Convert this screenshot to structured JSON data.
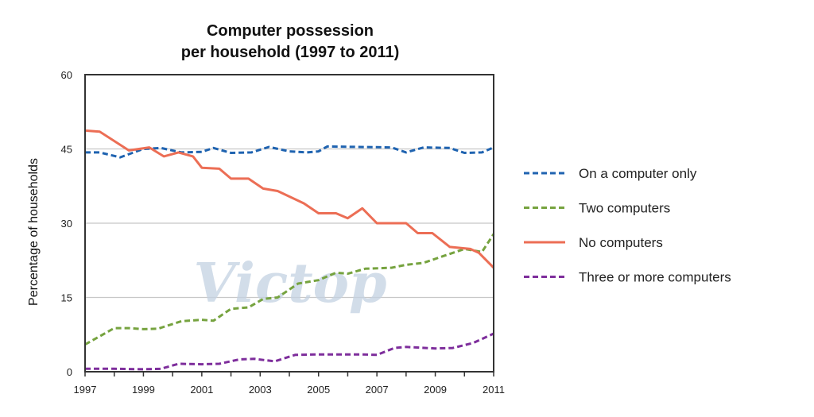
{
  "chart_data": {
    "type": "line",
    "title_line1": "Computer possession",
    "title_line2": "per household (1997 to 2011)",
    "xlabel": "",
    "ylabel": "Percentage of households",
    "xlim": [
      1997,
      2011
    ],
    "ylim": [
      0,
      60
    ],
    "xticks": [
      1997,
      1998,
      1999,
      2000,
      2001,
      2002,
      2003,
      2004,
      2005,
      2006,
      2007,
      2008,
      2009,
      2010,
      2011
    ],
    "xtick_labels": [
      "1997",
      "1999",
      "2001",
      "2003",
      "2005",
      "2007",
      "2009",
      "2011"
    ],
    "ytick_labels": [
      "0",
      "15",
      "30",
      "45",
      "60"
    ],
    "grid": "horizontal",
    "legend_position": "right",
    "watermark": "Victop",
    "series": [
      {
        "name": "On a computer only",
        "color": "#1f63b0",
        "dash": "dashed",
        "x": [
          1997,
          1997.5,
          1998.2,
          1999,
          1999.6,
          2000.3,
          2001,
          2001.4,
          2002,
          2002.7,
          2003.3,
          2004,
          2004.6,
          2005,
          2005.3,
          2007.5,
          2008,
          2008.6,
          2009.5,
          2010,
          2010.6,
          2011
        ],
        "y": [
          44.3,
          44.3,
          43.3,
          45,
          45.2,
          44.3,
          44.4,
          45.2,
          44.2,
          44.3,
          45.4,
          44.5,
          44.3,
          44.5,
          45.5,
          45.3,
          44.3,
          45.3,
          45.2,
          44.2,
          44.3,
          45.3
        ]
      },
      {
        "name": "Two computers",
        "color": "#76a33f",
        "dash": "dashed",
        "x": [
          1997,
          1998,
          1998.5,
          1999,
          1999.5,
          2000.3,
          2001,
          2001.4,
          2002,
          2002.6,
          2003.1,
          2003.6,
          2004.3,
          2005,
          2005.6,
          2006,
          2006.6,
          2007.5,
          2008,
          2008.6,
          2009.3,
          2010,
          2010.6,
          2011
        ],
        "y": [
          5.5,
          8.8,
          8.8,
          8.6,
          8.7,
          10.2,
          10.5,
          10.3,
          12.7,
          13,
          14.7,
          15,
          17.8,
          18.5,
          20,
          19.8,
          20.8,
          21,
          21.6,
          22,
          23.4,
          24.8,
          24.2,
          27.8
        ]
      },
      {
        "name": "No computers",
        "color": "#ec6e55",
        "dash": "solid",
        "x": [
          1997,
          1997.5,
          1998.5,
          1999.2,
          1999.7,
          2000.2,
          2000.7,
          2001,
          2001.6,
          2002,
          2002.6,
          2003.1,
          2003.6,
          2004.5,
          2005,
          2005.6,
          2006,
          2006.5,
          2007,
          2008,
          2008.4,
          2008.9,
          2009.5,
          2010.2,
          2010.5,
          2011
        ],
        "y": [
          48.7,
          48.5,
          44.7,
          45.3,
          43.5,
          44.3,
          43.5,
          41.2,
          41,
          39,
          39,
          37,
          36.5,
          34,
          32,
          32,
          31,
          33,
          30,
          30,
          28,
          28,
          25.2,
          24.8,
          24,
          21
        ]
      },
      {
        "name": "Three or more computers",
        "color": "#7e2e9c",
        "dash": "dashed",
        "x": [
          1997,
          1998,
          1999,
          1999.6,
          2000.2,
          2001,
          2001.6,
          2002.3,
          2002.8,
          2003.5,
          2004.2,
          2005,
          2006.5,
          2007,
          2007.6,
          2008,
          2009,
          2009.6,
          2010.3,
          2011
        ],
        "y": [
          0.6,
          0.6,
          0.5,
          0.6,
          1.6,
          1.5,
          1.6,
          2.5,
          2.6,
          2.1,
          3.4,
          3.5,
          3.5,
          3.4,
          4.8,
          5.0,
          4.7,
          4.8,
          5.8,
          7.7
        ]
      }
    ]
  }
}
